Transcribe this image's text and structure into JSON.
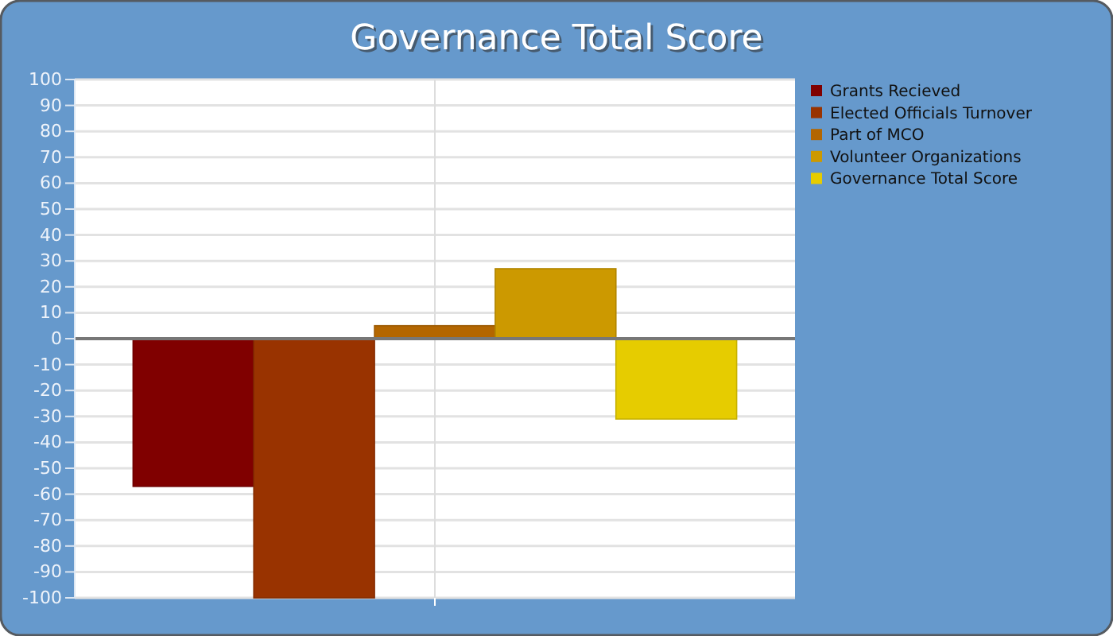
{
  "chart_data": {
    "type": "bar",
    "title": "Governance Total Score",
    "categories": [
      null
    ],
    "series": [
      {
        "name": "Grants Recieved",
        "color": "#800000",
        "values": [
          -57
        ]
      },
      {
        "name": "Elected Officials Turnover",
        "color": "#993300",
        "values": [
          -100
        ]
      },
      {
        "name": "Part of MCO",
        "color": "#b36600",
        "values": [
          5
        ]
      },
      {
        "name": "Volunteer Organizations",
        "color": "#cc9900",
        "values": [
          27
        ]
      },
      {
        "name": "Governance Total Score",
        "color": "#e6cc00",
        "values": [
          -31
        ]
      }
    ],
    "ylim": [
      -100,
      100
    ],
    "yticks": [
      -100,
      -90,
      -80,
      -70,
      -60,
      -50,
      -40,
      -30,
      -20,
      -10,
      0,
      10,
      20,
      30,
      40,
      50,
      60,
      70,
      80,
      90,
      100
    ],
    "grid": true,
    "legend": "right"
  }
}
